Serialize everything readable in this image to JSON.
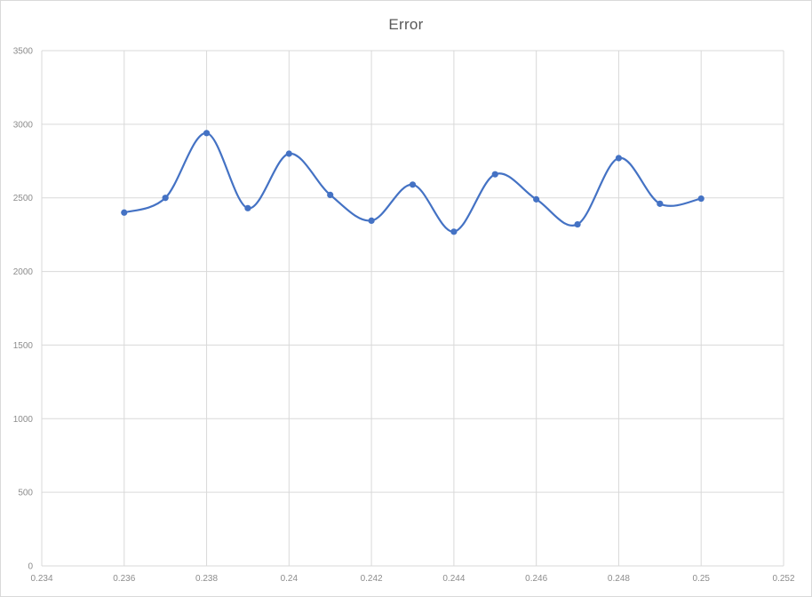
{
  "chart_data": {
    "type": "scatter",
    "smooth_lines": true,
    "title": "Error",
    "xlabel": "",
    "ylabel": "",
    "xlim": [
      0.234,
      0.252
    ],
    "ylim": [
      0,
      3500
    ],
    "x_ticks": [
      "0.234",
      "0.236",
      "0.238",
      "0.24",
      "0.242",
      "0.244",
      "0.246",
      "0.248",
      "0.25",
      "0.252"
    ],
    "y_ticks": [
      "0",
      "500",
      "1000",
      "1500",
      "2000",
      "2500",
      "3000",
      "3500"
    ],
    "grid": true,
    "legend": "none",
    "series": [
      {
        "color": "#4472c4",
        "x": [
          0.236,
          0.237,
          0.238,
          0.239,
          0.24,
          0.241,
          0.242,
          0.243,
          0.244,
          0.245,
          0.246,
          0.247,
          0.248,
          0.249,
          0.25
        ],
        "y": [
          2400,
          2500,
          2940,
          2430,
          2800,
          2520,
          2345,
          2590,
          2270,
          2660,
          2490,
          2320,
          2770,
          2460,
          2495
        ]
      }
    ],
    "colors": {
      "gridline": "#d9d9d9",
      "tick_text": "#8c8c8c",
      "title_text": "#595959"
    }
  }
}
